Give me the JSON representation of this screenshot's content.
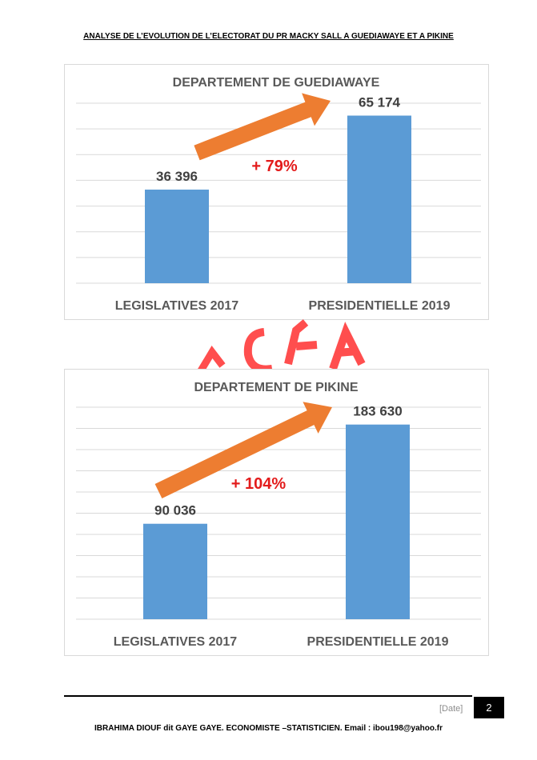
{
  "document": {
    "header": "ANALYSE DE L’EVOLUTION DE L’ELECTORAT DU PR MACKY SALL A GUEDIAWAYE ET A PIKINE",
    "footer_date": "[Date]",
    "page_number": "2",
    "footer_text": "IBRAHIMA DIOUF dit GAYE GAYE. ECONOMISTE –STATISTICIEN. Email : ibou198@yahoo.fr"
  },
  "colors": {
    "bar": "#5b9bd5",
    "arrow": "#ed7d31",
    "growth_label": "#e31b1b",
    "gridline": "#d9d9d9",
    "text": "#595959",
    "watermark": "#ff3333"
  },
  "chart_data": [
    {
      "type": "bar",
      "title": "DEPARTEMENT DE GUEDIAWAYE",
      "categories": [
        "LEGISLATIVES 2017",
        "PRESIDENTIELLE 2019"
      ],
      "values": [
        36396,
        65174
      ],
      "value_labels": [
        "36 396",
        "65 174"
      ],
      "growth_label": "+ 79%",
      "ylim": [
        0,
        70000
      ],
      "gridlines": 7,
      "grid": true,
      "legend": "none"
    },
    {
      "type": "bar",
      "title": "DEPARTEMENT DE PIKINE",
      "categories": [
        "LEGISLATIVES 2017",
        "PRESIDENTIELLE 2019"
      ],
      "values": [
        90036,
        183630
      ],
      "value_labels": [
        "90 036",
        "183 630"
      ],
      "growth_label": "+ 104%",
      "ylim": [
        0,
        200000
      ],
      "gridlines": 10,
      "grid": true,
      "legend": "none"
    }
  ]
}
